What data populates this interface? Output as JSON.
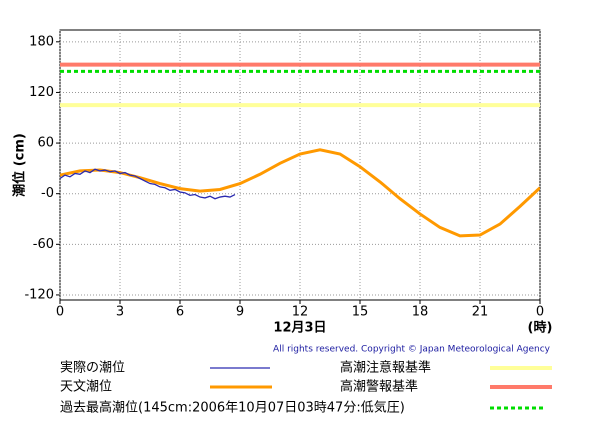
{
  "chart_data": {
    "type": "line",
    "y_label": "潮位 (cm)",
    "x_label": "12月3日",
    "x_unit": "(時)",
    "copyright": "All rights reserved. Copyright © Japan Meteorological Agency",
    "xlim": [
      0,
      24
    ],
    "xticks": [
      0,
      3,
      6,
      9,
      12,
      15,
      18,
      21,
      {
        "value": 24,
        "label": "0"
      }
    ],
    "ylim": [
      -126,
      194
    ],
    "yticks": [
      -120,
      -60,
      {
        "value": 0,
        "label": "-0"
      },
      60,
      120,
      180
    ],
    "grid": true,
    "series": [
      {
        "name": "天文潮位",
        "color": "#ff9900",
        "x": [
          0,
          1,
          2,
          3,
          4,
          5,
          6,
          7,
          8,
          9,
          10,
          11,
          12,
          13,
          14,
          15,
          16,
          17,
          18,
          19,
          20,
          21,
          22,
          23,
          24
        ],
        "values": [
          22,
          27,
          28,
          25,
          19,
          12,
          6,
          3,
          5,
          12,
          23,
          36,
          47,
          52,
          47,
          32,
          14,
          -6,
          -24,
          -40,
          -50,
          -49,
          -36,
          -15,
          7
        ]
      },
      {
        "name": "実際の潮位",
        "color": "#2a2ab0",
        "x": [
          0,
          0.25,
          0.5,
          0.75,
          1,
          1.25,
          1.5,
          1.75,
          2,
          2.25,
          2.5,
          2.75,
          3,
          3.25,
          3.5,
          3.75,
          4,
          4.25,
          4.5,
          4.75,
          5,
          5.25,
          5.5,
          5.75,
          6,
          6.25,
          6.5,
          6.75,
          7,
          7.25,
          7.5,
          7.75,
          8,
          8.25,
          8.5,
          8.75
        ],
        "values": [
          18,
          22,
          20,
          24,
          23,
          27,
          25,
          29,
          27,
          28,
          26,
          27,
          24,
          25,
          22,
          21,
          18,
          15,
          12,
          11,
          8,
          7,
          4,
          5,
          2,
          1,
          -2,
          -1,
          -4,
          -5,
          -3,
          -6,
          -4,
          -3,
          -4,
          -1
        ]
      }
    ],
    "reference_lines": [
      {
        "name": "高潮注意報基準",
        "value": 105,
        "color": "#ffff99",
        "dashed": false
      },
      {
        "name": "高潮警報基準",
        "value": 153,
        "color": "#ff7a6a",
        "dashed": false
      },
      {
        "name": "過去最高潮位(145cm:2006年10月07日03時47分:低気圧)",
        "value": 145,
        "color": "#00dd00",
        "dashed": true
      }
    ]
  }
}
